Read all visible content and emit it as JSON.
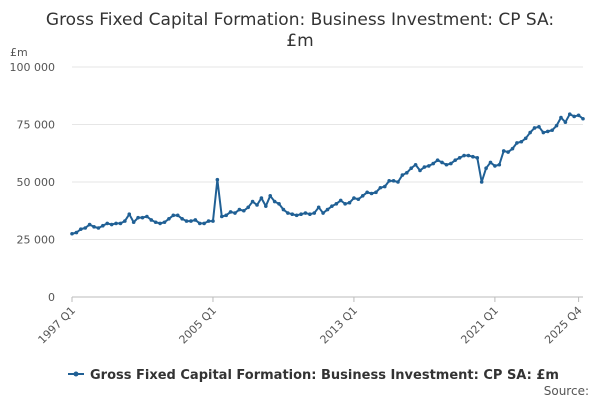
{
  "chart_data": {
    "type": "line",
    "title": [
      "Gross Fixed Capital Formation: Business Investment: CP SA:",
      "£m"
    ],
    "ylabel": "£m",
    "xlabel": "",
    "ylim": [
      0,
      100000
    ],
    "y_ticks": [
      {
        "value": 0,
        "label": "0"
      },
      {
        "value": 25000,
        "label": "25 000"
      },
      {
        "value": 50000,
        "label": "50 000"
      },
      {
        "value": 75000,
        "label": "75 000"
      },
      {
        "value": 100000,
        "label": "100 000"
      }
    ],
    "x_ticks": [
      {
        "index": 0,
        "label": "1997 Q1"
      },
      {
        "index": 32,
        "label": "2005 Q1"
      },
      {
        "index": 64,
        "label": "2013 Q1"
      },
      {
        "index": 96,
        "label": "2021 Q1"
      },
      {
        "index": 115,
        "label": "2025 Q4"
      }
    ],
    "grid": true,
    "legend_position": "bottom",
    "series": [
      {
        "name": "Gross Fixed Capital Formation: Business Investment: CP SA: £m",
        "color": "#206095",
        "x_start": "1997 Q1",
        "frequency": "quarterly",
        "values": [
          27500,
          28000,
          29500,
          30000,
          31500,
          30500,
          30000,
          31000,
          32000,
          31500,
          32000,
          32000,
          33000,
          36000,
          32500,
          34500,
          34500,
          35000,
          33500,
          32500,
          32000,
          32500,
          34000,
          35500,
          35500,
          34000,
          33000,
          33000,
          33500,
          32000,
          32000,
          33000,
          33000,
          51000,
          35000,
          35500,
          37000,
          36500,
          38000,
          37500,
          39000,
          41500,
          40000,
          43000,
          39500,
          44000,
          41500,
          40500,
          38000,
          36500,
          36000,
          35500,
          36000,
          36500,
          36000,
          36500,
          39000,
          36500,
          38000,
          39500,
          40500,
          42000,
          40500,
          41000,
          43000,
          42500,
          44000,
          45500,
          45000,
          45500,
          47500,
          48000,
          50500,
          50500,
          50000,
          53000,
          54000,
          56000,
          57500,
          55000,
          56500,
          57000,
          58000,
          59500,
          58500,
          57500,
          58000,
          59500,
          60500,
          61500,
          61500,
          61000,
          60500,
          50000,
          56000,
          58500,
          57000,
          57500,
          63500,
          63000,
          64500,
          67000,
          67500,
          69000,
          71500,
          73500,
          74000,
          71500,
          72000,
          72500,
          74500,
          78000,
          76000,
          79500,
          78500,
          79000,
          77500
        ]
      }
    ]
  },
  "source_label": "Source:"
}
